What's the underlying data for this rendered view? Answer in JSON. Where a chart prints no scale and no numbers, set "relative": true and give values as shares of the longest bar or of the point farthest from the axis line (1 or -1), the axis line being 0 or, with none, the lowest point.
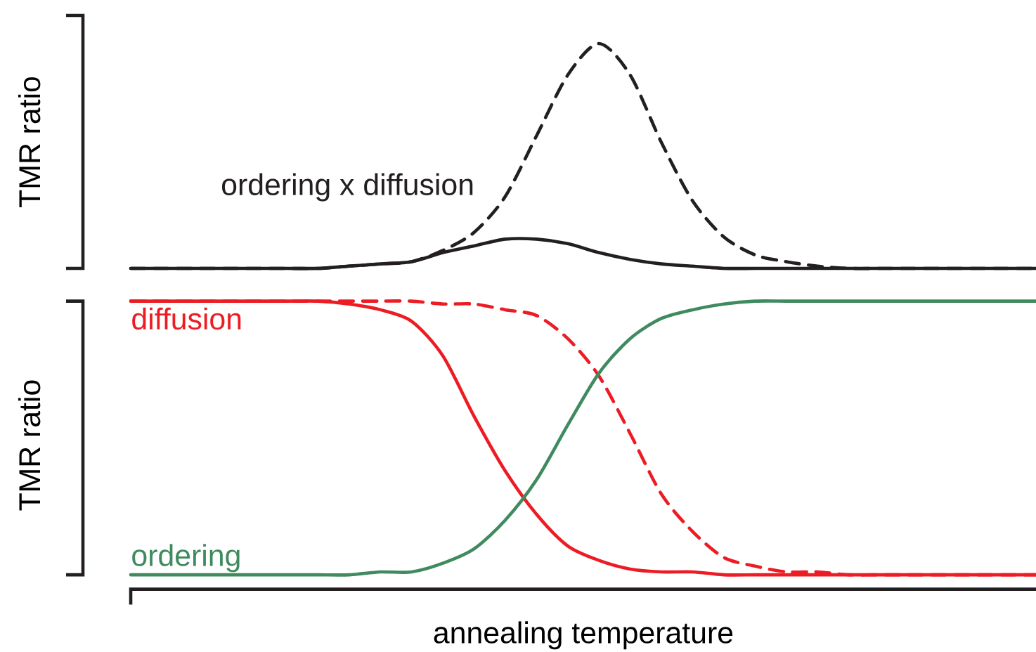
{
  "chart_data": [
    {
      "type": "line",
      "ylabel": "TMR ratio",
      "relative": true,
      "categories": [
        null,
        null,
        null,
        null,
        null,
        null,
        null,
        null,
        null,
        null,
        null,
        null,
        null,
        null,
        null,
        null,
        null,
        null,
        null,
        null,
        null,
        null,
        null,
        null,
        null,
        null,
        null,
        null,
        null,
        null
      ],
      "series": [
        {
          "name": "ordering x diffusion",
          "color": "#231f20",
          "values": [
            0,
            0,
            0,
            0,
            0,
            0,
            0,
            0.01,
            0.02,
            0.03,
            0.07,
            0.1,
            0.13,
            0.13,
            0.11,
            0.07,
            0.04,
            0.02,
            0.01,
            0,
            0,
            0,
            0,
            0,
            0,
            0,
            0,
            0,
            0,
            0
          ]
        },
        {
          "color": "#231f20",
          "line_style": "dashed",
          "values": [
            0,
            0,
            0,
            0,
            0,
            0,
            0,
            0.01,
            0.02,
            0.03,
            0.08,
            0.16,
            0.32,
            0.59,
            0.86,
            1,
            0.86,
            0.56,
            0.3,
            0.14,
            0.06,
            0.03,
            0.01,
            0,
            0,
            0,
            0,
            0,
            0,
            0
          ]
        }
      ]
    },
    {
      "type": "line",
      "ylabel": "TMR ratio",
      "xlabel": "annealing temperature",
      "relative": true,
      "categories": [
        null,
        null,
        null,
        null,
        null,
        null,
        null,
        null,
        null,
        null,
        null,
        null,
        null,
        null,
        null,
        null,
        null,
        null,
        null,
        null,
        null,
        null,
        null,
        null,
        null,
        null,
        null,
        null,
        null,
        null
      ],
      "series": [
        {
          "name": "diffusion",
          "color": "#ed1c24",
          "values": [
            1,
            1,
            1,
            1,
            1,
            1,
            1,
            0.99,
            0.97,
            0.93,
            0.81,
            0.6,
            0.41,
            0.26,
            0.15,
            0.1,
            0.07,
            0.06,
            0.06,
            0.05,
            0.05,
            0.05,
            0.05,
            0.05,
            0.05,
            0.05,
            0.05,
            0.05,
            0.05,
            0.05
          ]
        },
        {
          "color": "#ed1c24",
          "line_style": "dashed",
          "values": [
            1,
            1,
            1,
            1,
            1,
            1,
            1,
            1,
            1,
            1,
            0.99,
            0.99,
            0.97,
            0.95,
            0.87,
            0.74,
            0.54,
            0.33,
            0.2,
            0.11,
            0.08,
            0.06,
            0.06,
            0.05,
            0.05,
            0.05,
            0.05,
            0.05,
            0.05,
            0.05
          ]
        },
        {
          "name": "ordering",
          "color": "#3f8a5f",
          "values": [
            0.05,
            0.05,
            0.05,
            0.05,
            0.05,
            0.05,
            0.05,
            0.05,
            0.06,
            0.06,
            0.09,
            0.14,
            0.24,
            0.38,
            0.57,
            0.75,
            0.87,
            0.94,
            0.97,
            0.99,
            1,
            1,
            1,
            1,
            1,
            1,
            1,
            1,
            1,
            1
          ]
        }
      ]
    }
  ]
}
